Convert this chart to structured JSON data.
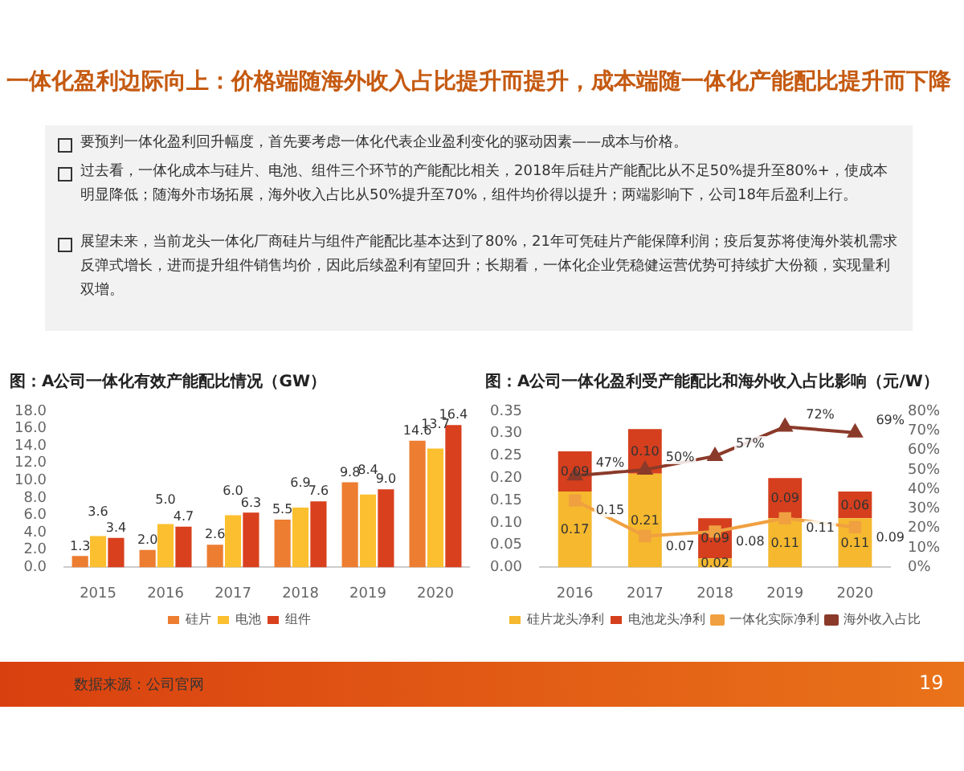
{
  "chart_data": [
    {
      "type": "other",
      "title": "一体化盈利边际向上：价格端随海外收入占比提升而提升，成本端随一体化产能配比提升而下降",
      "annotations": [
        "要预判一体化盈利回升幅度，首先要考虑一体化代表企业盈利变化的驱动因素——成本与价格。",
        "过去看，一体化成本与硅片、电池、组件三个环节的产能配比相关，2018年后硅片产能配比从不足50%提升至80%+，使成本明显降低；随海外市场拓展，海外收入占比从50%提升至70%，组件均价得以提升；两端影响下，公司18年后盈利上行。",
        "展望未来，当前龙头一体化厂商硅片与组件产能配比基本达到了80%，21年可凭硅片产能保障利润；疫后复苏将使海外装机需求反弹式增长，进而提升组件销售均价，因此后续盈利有望回升；长期看，一体化企业凭稳健运营优势可持续扩大份额，实现量利双增。",
        "数据来源：公司官网",
        "19"
      ]
    },
    {
      "type": "bar",
      "title": "图：A公司一体化有效产能配比情况（GW）",
      "categories": [
        "2015",
        "2016",
        "2017",
        "2018",
        "2019",
        "2020"
      ],
      "legend": "bottom",
      "ylim": [
        0,
        18
      ],
      "yticks": [
        {
          "value": 0,
          "label": "0.0"
        },
        {
          "value": 2,
          "label": "2.0"
        },
        {
          "value": 4,
          "label": "4.0"
        },
        {
          "value": 6,
          "label": "6.0"
        },
        {
          "value": 8,
          "label": "8.0"
        },
        {
          "value": 10,
          "label": "10.0"
        },
        {
          "value": 12,
          "label": "12.0"
        },
        {
          "value": 14,
          "label": "14.0"
        },
        {
          "value": 16,
          "label": "16.0"
        },
        {
          "value": 18,
          "label": "18.0"
        }
      ],
      "series": [
        {
          "name": "硅片",
          "color": "#ed7d31",
          "values": [
            1.3,
            2.0,
            2.6,
            5.5,
            9.8,
            14.6
          ],
          "value_labels": [
            "1.3",
            "2.0",
            "2.6",
            "5.5",
            "9.8",
            "14.6"
          ]
        },
        {
          "name": "电池",
          "color": "#fbbf2f",
          "values": [
            3.6,
            5.0,
            6.0,
            6.9,
            8.4,
            13.7
          ],
          "value_labels": [
            "3.6",
            "5.0",
            "6.0",
            "6.9",
            "8.4",
            "13.7"
          ]
        },
        {
          "name": "组件",
          "color": "#d9401e",
          "values": [
            3.4,
            4.7,
            6.3,
            7.6,
            9.0,
            16.4
          ],
          "value_labels": [
            "3.4",
            "4.7",
            "6.3",
            "7.6",
            "9.0",
            "16.4"
          ]
        }
      ]
    },
    {
      "type": "bar",
      "title": "图：A公司一体化盈利受产能配比和海外收入占比影响（元/W）",
      "categories": [
        "2016",
        "2017",
        "2018",
        "2019",
        "2020"
      ],
      "legend": "bottom",
      "stacked": true,
      "ylim": [
        0,
        0.35
      ],
      "yticks": [
        {
          "value": 0,
          "label": "0.00"
        },
        {
          "value": 0.05,
          "label": "0.05"
        },
        {
          "value": 0.1,
          "label": "0.10"
        },
        {
          "value": 0.15,
          "label": "0.15"
        },
        {
          "value": 0.2,
          "label": "0.20"
        },
        {
          "value": 0.25,
          "label": "0.25"
        },
        {
          "value": 0.3,
          "label": "0.30"
        },
        {
          "value": 0.35,
          "label": "0.35"
        }
      ],
      "y2lim": [
        0,
        80
      ],
      "y2ticks": [
        {
          "value": 0,
          "label": "0%"
        },
        {
          "value": 10,
          "label": "10%"
        },
        {
          "value": 20,
          "label": "20%"
        },
        {
          "value": 30,
          "label": "30%"
        },
        {
          "value": 40,
          "label": "40%"
        },
        {
          "value": 50,
          "label": "50%"
        },
        {
          "value": 60,
          "label": "60%"
        },
        {
          "value": 70,
          "label": "70%"
        },
        {
          "value": 80,
          "label": "80%"
        }
      ],
      "series": [
        {
          "name": "硅片龙头净利",
          "color": "#f5b82e",
          "values": [
            0.17,
            0.21,
            0.02,
            0.11,
            0.11
          ],
          "value_labels": [
            "0.17",
            "0.21",
            "0.02",
            "0.11",
            "0.11"
          ]
        },
        {
          "name": "电池龙头净利",
          "color": "#d53f1e",
          "values": [
            0.09,
            0.1,
            0.09,
            0.09,
            0.06
          ],
          "value_labels": [
            "0.09",
            "0.10",
            "0.09",
            "0.09",
            "0.06"
          ]
        },
        {
          "name": "一体化实际净利",
          "type": "line",
          "marker": "square",
          "color": "#f0a040",
          "values": [
            0.15,
            0.07,
            0.08,
            0.11,
            0.09
          ],
          "value_labels": [
            "0.15",
            "0.07",
            "0.08",
            "0.11",
            "0.09"
          ]
        },
        {
          "name": "海外收入占比",
          "type": "line",
          "marker": "triangle",
          "axis": "y2",
          "color": "#8b3a2a",
          "values": [
            47,
            50,
            57,
            72,
            69
          ],
          "value_labels": [
            "47%",
            "50%",
            "57%",
            "72%",
            "69%"
          ]
        }
      ]
    }
  ]
}
